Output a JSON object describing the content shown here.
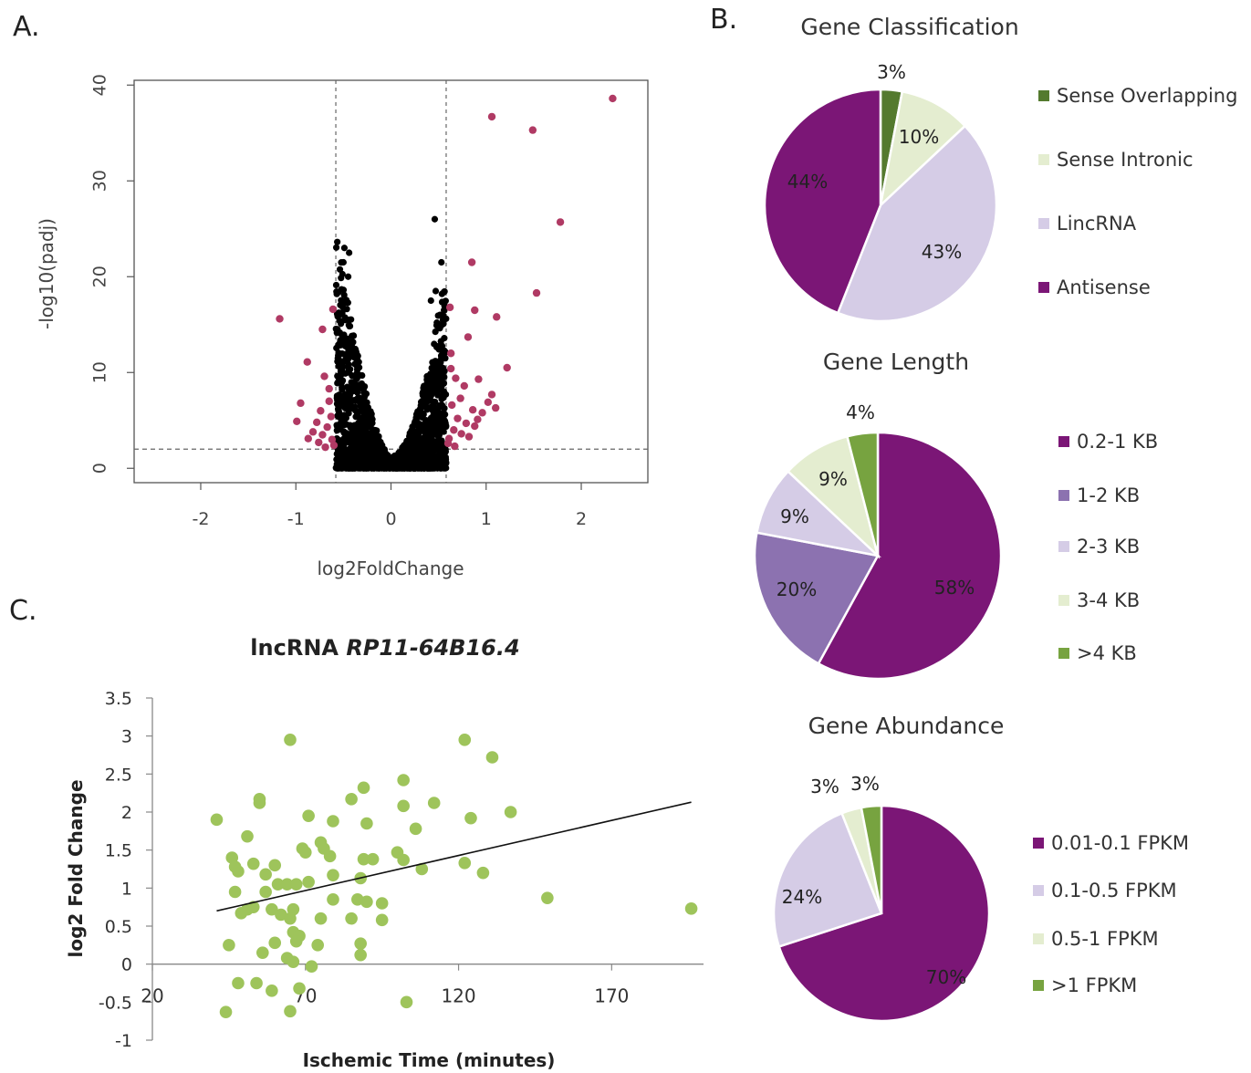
{
  "panels": {
    "a": "A.",
    "b": "B.",
    "c": "C."
  },
  "colors": {
    "volcano_sig": "#b03a64",
    "volcano_ns": "#000000",
    "scatter": "#9ec45b",
    "pie_dark_purple": "#7b1676",
    "pie_mid_purple": "#8c72b0",
    "pie_lavender": "#d5cce6",
    "pie_pale_green": "#e4edd0",
    "pie_green": "#77a340",
    "pie_dark_green": "#547a2e"
  },
  "chart_data": [
    {
      "type": "scatter",
      "id": "volcano",
      "xlabel": "log2FoldChange",
      "ylabel": "-log10(padj)",
      "xlim": [
        -2.7,
        2.7
      ],
      "ylim": [
        -1.5,
        40.5
      ],
      "xticks": [
        -2,
        -1,
        0,
        1,
        2
      ],
      "yticks": [
        0,
        10,
        20,
        30,
        40
      ],
      "thresholds": {
        "x": [
          -0.58,
          0.58
        ],
        "y": 2
      },
      "significant_points": [
        [
          2.33,
          38.6
        ],
        [
          1.06,
          36.7
        ],
        [
          1.49,
          35.3
        ],
        [
          1.78,
          25.7
        ],
        [
          0.85,
          21.5
        ],
        [
          1.53,
          18.3
        ],
        [
          1.11,
          15.8
        ],
        [
          -1.17,
          15.6
        ],
        [
          0.88,
          16.5
        ],
        [
          0.62,
          16.8
        ],
        [
          0.81,
          13.7
        ],
        [
          -0.72,
          14.5
        ],
        [
          1.22,
          10.5
        ],
        [
          -0.88,
          11.1
        ],
        [
          -0.61,
          16.6
        ],
        [
          0.63,
          10.4
        ],
        [
          0.68,
          9.4
        ],
        [
          0.92,
          9.3
        ],
        [
          1.06,
          7.7
        ],
        [
          1.02,
          6.9
        ],
        [
          0.73,
          7.3
        ],
        [
          0.86,
          6.1
        ],
        [
          0.96,
          5.8
        ],
        [
          0.7,
          5.2
        ],
        [
          0.79,
          4.7
        ],
        [
          0.88,
          4.4
        ],
        [
          0.66,
          4.0
        ],
        [
          0.74,
          3.6
        ],
        [
          0.61,
          3.1
        ],
        [
          0.82,
          3.3
        ],
        [
          0.6,
          2.6
        ],
        [
          0.67,
          2.3
        ],
        [
          0.91,
          5.1
        ],
        [
          1.1,
          6.3
        ],
        [
          0.77,
          8.6
        ],
        [
          0.64,
          6.6
        ],
        [
          0.63,
          12.0
        ],
        [
          -0.7,
          9.6
        ],
        [
          -0.65,
          8.3
        ],
        [
          -0.95,
          6.8
        ],
        [
          -0.74,
          6.0
        ],
        [
          -0.63,
          5.4
        ],
        [
          -0.78,
          4.8
        ],
        [
          -0.99,
          4.9
        ],
        [
          -0.67,
          4.3
        ],
        [
          -0.82,
          3.8
        ],
        [
          -0.72,
          3.5
        ],
        [
          -0.62,
          3.0
        ],
        [
          -0.87,
          3.1
        ],
        [
          -0.6,
          2.4
        ],
        [
          -0.69,
          2.2
        ],
        [
          -0.76,
          2.7
        ],
        [
          -0.65,
          7.0
        ]
      ]
    },
    {
      "type": "pie",
      "id": "gene_classification",
      "title": "Gene Classification",
      "categories": [
        "Sense Overlapping",
        "Sense Intronic",
        "LincRNA",
        "Antisense"
      ],
      "values": [
        3,
        10,
        43,
        44
      ],
      "labels": [
        "3%",
        "10%",
        "43%",
        "44%"
      ],
      "colors": [
        "#547a2e",
        "#e4edd0",
        "#d5cce6",
        "#7b1676"
      ],
      "legend": "right"
    },
    {
      "type": "pie",
      "id": "gene_length",
      "title": "Gene Length",
      "categories": [
        "0.2-1 KB",
        "1-2 KB",
        "2-3 KB",
        "3-4 KB",
        ">4 KB"
      ],
      "values": [
        58,
        20,
        9,
        9,
        4
      ],
      "labels": [
        "58%",
        "20%",
        "9%",
        "9%",
        "4%"
      ],
      "colors": [
        "#7b1676",
        "#8c72b0",
        "#d5cce6",
        "#e4edd0",
        "#77a340"
      ],
      "legend": "right"
    },
    {
      "type": "pie",
      "id": "gene_abundance",
      "title": "Gene Abundance",
      "categories": [
        "0.01-0.1 FPKM",
        "0.1-0.5 FPKM",
        "0.5-1 FPKM",
        ">1 FPKM"
      ],
      "values": [
        70,
        24,
        3,
        3
      ],
      "labels": [
        "70%",
        "24%",
        "3%",
        "3%"
      ],
      "colors": [
        "#7b1676",
        "#d5cce6",
        "#e4edd0",
        "#77a340"
      ],
      "legend": "right"
    },
    {
      "type": "scatter",
      "id": "rp11",
      "title_prefix": "lncRNA ",
      "title_gene": "RP11-64B16.4",
      "xlabel": "Ischemic Time (minutes)",
      "ylabel": "log2 Fold Change",
      "xlim": [
        20,
        200
      ],
      "ylim": [
        -1,
        3.5
      ],
      "xticks": [
        20,
        70,
        120,
        170
      ],
      "yticks": [
        -1,
        -0.5,
        0,
        0.5,
        1,
        1.5,
        2,
        2.5,
        3,
        3.5
      ],
      "trendline": [
        [
          41,
          0.7
        ],
        [
          196,
          2.13
        ]
      ],
      "points": [
        [
          41,
          1.9
        ],
        [
          65,
          2.95
        ],
        [
          122,
          2.95
        ],
        [
          131,
          2.72
        ],
        [
          102,
          2.42
        ],
        [
          89,
          2.32
        ],
        [
          55,
          2.17
        ],
        [
          55,
          2.12
        ],
        [
          85,
          2.17
        ],
        [
          112,
          2.12
        ],
        [
          102,
          2.08
        ],
        [
          137,
          2.0
        ],
        [
          71,
          1.95
        ],
        [
          124,
          1.92
        ],
        [
          79,
          1.88
        ],
        [
          90,
          1.85
        ],
        [
          106,
          1.78
        ],
        [
          51,
          1.68
        ],
        [
          75,
          1.6
        ],
        [
          76,
          1.52
        ],
        [
          69,
          1.52
        ],
        [
          70,
          1.47
        ],
        [
          78,
          1.42
        ],
        [
          100,
          1.47
        ],
        [
          46,
          1.4
        ],
        [
          53,
          1.32
        ],
        [
          60,
          1.3
        ],
        [
          89,
          1.38
        ],
        [
          92,
          1.38
        ],
        [
          102,
          1.37
        ],
        [
          47,
          1.28
        ],
        [
          48,
          1.22
        ],
        [
          57,
          1.18
        ],
        [
          79,
          1.17
        ],
        [
          108,
          1.25
        ],
        [
          122,
          1.33
        ],
        [
          128,
          1.2
        ],
        [
          88,
          1.13
        ],
        [
          61,
          1.05
        ],
        [
          64,
          1.05
        ],
        [
          67,
          1.05
        ],
        [
          71,
          1.08
        ],
        [
          47,
          0.95
        ],
        [
          57,
          0.95
        ],
        [
          79,
          0.85
        ],
        [
          87,
          0.85
        ],
        [
          90,
          0.82
        ],
        [
          95,
          0.8
        ],
        [
          51,
          0.72
        ],
        [
          53,
          0.75
        ],
        [
          59,
          0.72
        ],
        [
          66,
          0.72
        ],
        [
          49,
          0.67
        ],
        [
          62,
          0.65
        ],
        [
          65,
          0.6
        ],
        [
          75,
          0.6
        ],
        [
          85,
          0.6
        ],
        [
          95,
          0.58
        ],
        [
          149,
          0.87
        ],
        [
          196,
          0.73
        ],
        [
          66,
          0.42
        ],
        [
          68,
          0.37
        ],
        [
          67,
          0.3
        ],
        [
          88,
          0.27
        ],
        [
          45,
          0.25
        ],
        [
          60,
          0.28
        ],
        [
          74,
          0.25
        ],
        [
          56,
          0.15
        ],
        [
          88,
          0.12
        ],
        [
          64,
          0.08
        ],
        [
          66,
          0.03
        ],
        [
          72,
          -0.03
        ],
        [
          48,
          -0.25
        ],
        [
          54,
          -0.25
        ],
        [
          59,
          -0.35
        ],
        [
          68,
          -0.32
        ],
        [
          65,
          -0.62
        ],
        [
          44,
          -0.63
        ],
        [
          103,
          -0.5
        ]
      ]
    }
  ]
}
